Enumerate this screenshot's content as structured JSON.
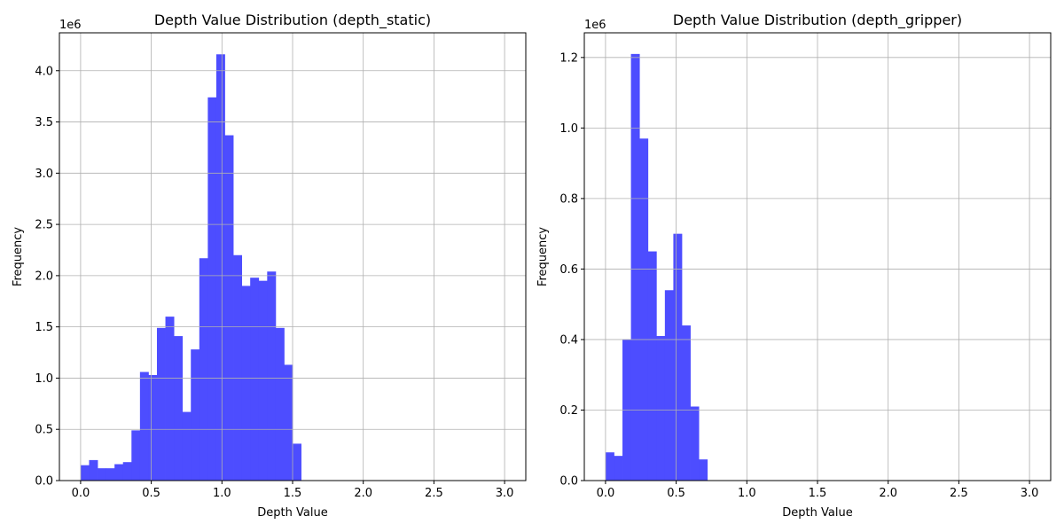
{
  "chart_data": [
    {
      "type": "bar",
      "title": "Depth Value Distribution (depth_static)",
      "xlabel": "Depth Value",
      "ylabel": "Frequency",
      "offset_label": "1e6",
      "xlim": [
        -0.15,
        3.15
      ],
      "ylim": [
        0,
        4.37
      ],
      "xticks": [
        0,
        0.5,
        1,
        1.5,
        2,
        2.5,
        3
      ],
      "xtick_labels": [
        "0.0",
        "0.5",
        "1.0",
        "1.5",
        "2.0",
        "2.5",
        "3.0"
      ],
      "yticks": [
        0,
        0.5,
        1,
        1.5,
        2,
        2.5,
        3,
        3.5,
        4
      ],
      "ytick_labels": [
        "0.0",
        "0.5",
        "1.0",
        "1.5",
        "2.0",
        "2.5",
        "3.0",
        "3.5",
        "4.0"
      ],
      "grid": true,
      "color": "#4d4dff",
      "bin_width": 0.06,
      "bin_start": 0.0,
      "values": [
        0.15,
        0.2,
        0.12,
        0.12,
        0.16,
        0.18,
        0.49,
        1.06,
        1.03,
        1.49,
        1.6,
        1.41,
        0.67,
        1.28,
        2.17,
        3.74,
        4.16,
        3.37,
        2.2,
        1.9,
        1.98,
        1.95,
        2.04,
        1.49,
        1.13,
        0.36
      ]
    },
    {
      "type": "bar",
      "title": "Depth Value Distribution (depth_gripper)",
      "xlabel": "Depth Value",
      "ylabel": "Frequency",
      "offset_label": "1e6",
      "xlim": [
        -0.15,
        3.15
      ],
      "ylim": [
        0,
        1.27
      ],
      "xticks": [
        0,
        0.5,
        1,
        1.5,
        2,
        2.5,
        3
      ],
      "xtick_labels": [
        "0.0",
        "0.5",
        "1.0",
        "1.5",
        "2.0",
        "2.5",
        "3.0"
      ],
      "yticks": [
        0,
        0.2,
        0.4,
        0.6,
        0.8,
        1.0,
        1.2
      ],
      "ytick_labels": [
        "0.0",
        "0.2",
        "0.4",
        "0.6",
        "0.8",
        "1.0",
        "1.2"
      ],
      "grid": true,
      "color": "#4d4dff",
      "bin_width": 0.06,
      "bin_start": 0.0,
      "values": [
        0.08,
        0.07,
        0.4,
        1.21,
        0.97,
        0.65,
        0.41,
        0.54,
        0.7,
        0.44,
        0.21,
        0.06
      ]
    }
  ]
}
